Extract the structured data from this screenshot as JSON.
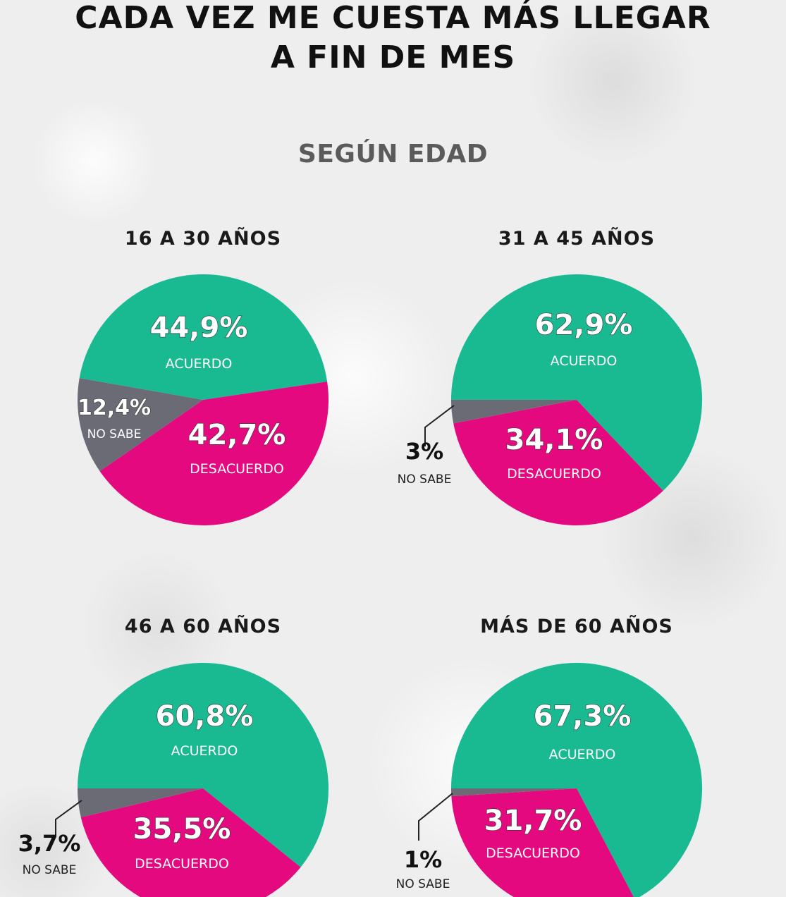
{
  "header": {
    "title_line1": "CADA VEZ ME CUESTA MÁS LLEGAR",
    "title_line2": "A FIN DE MES",
    "subtitle": "SEGÚN EDAD"
  },
  "colors": {
    "acuerdo": "#19b992",
    "desacuerdo": "#e5097f",
    "no_sabe": "#6b6b75"
  },
  "chart_data": [
    {
      "type": "pie",
      "title": "16 A 30 AÑOS",
      "categories": [
        "ACUERDO",
        "DESACUERDO",
        "NO SABE"
      ],
      "values": [
        44.9,
        42.7,
        12.4
      ],
      "value_labels": [
        "44,9%",
        "42,7%",
        "12,4%"
      ]
    },
    {
      "type": "pie",
      "title": "31 A 45 AÑOS",
      "categories": [
        "ACUERDO",
        "DESACUERDO",
        "NO SABE"
      ],
      "values": [
        62.9,
        34.1,
        3
      ],
      "value_labels": [
        "62,9%",
        "34,1%",
        "3%"
      ]
    },
    {
      "type": "pie",
      "title": "46 A 60 AÑOS",
      "categories": [
        "ACUERDO",
        "DESACUERDO",
        "NO SABE"
      ],
      "values": [
        60.8,
        35.5,
        3.7
      ],
      "value_labels": [
        "60,8%",
        "35,5%",
        "3,7%"
      ]
    },
    {
      "type": "pie",
      "title": "MÁS DE 60 AÑOS",
      "categories": [
        "ACUERDO",
        "DESACUERDO",
        "NO SABE"
      ],
      "values": [
        67.3,
        31.7,
        1
      ],
      "value_labels": [
        "67,3%",
        "31,7%",
        "1%"
      ]
    }
  ]
}
